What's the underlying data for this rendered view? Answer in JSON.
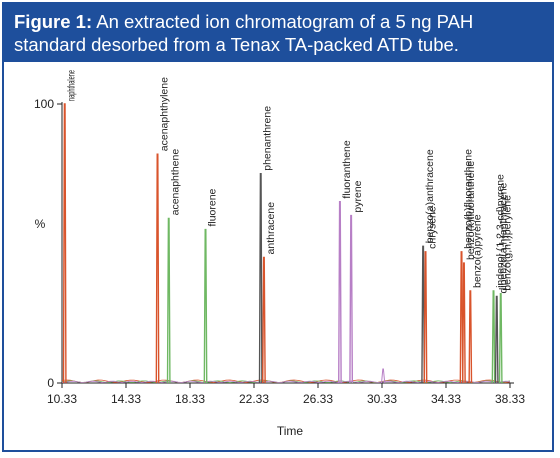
{
  "figure": {
    "label": "Figure 1:",
    "caption": "An extracted ion chromatogram of a 5 ng PAH standard desorbed from a Tenax TA-packed ATD tube."
  },
  "chart_data": {
    "type": "line",
    "xlabel": "Time",
    "ylabel": "%",
    "xlim": [
      10.33,
      38.33
    ],
    "ylim": [
      0,
      100
    ],
    "x_ticks": [
      "10.33",
      "14.33",
      "18.33",
      "22.33",
      "26.33",
      "30.33",
      "34.33",
      "38.33"
    ],
    "y_ticks": [
      "0",
      "100"
    ],
    "peaks": [
      {
        "label": "naphthalene",
        "time": 10.5,
        "height": 100,
        "color": "#d9542c"
      },
      {
        "label": "acenaphthylene",
        "time": 16.3,
        "height": 82,
        "color": "#d9542c"
      },
      {
        "label": "acenaphthene",
        "time": 17.0,
        "height": 59,
        "color": "#6fb863"
      },
      {
        "label": "fluorene",
        "time": 19.3,
        "height": 55,
        "color": "#6fb863"
      },
      {
        "label": "phenanthrene",
        "time": 22.75,
        "height": 75,
        "color": "#555555"
      },
      {
        "label": "anthracene",
        "time": 22.95,
        "height": 45,
        "color": "#d9542c"
      },
      {
        "label": "fluoranthene",
        "time": 27.7,
        "height": 65,
        "color": "#b77fc6"
      },
      {
        "label": "pyrene",
        "time": 28.4,
        "height": 60,
        "color": "#b77fc6"
      },
      {
        "label": "benzo(a)anthracene",
        "time": 32.9,
        "height": 49,
        "color": "#555555"
      },
      {
        "label": "chrysene",
        "time": 33.05,
        "height": 47,
        "color": "#d9542c"
      },
      {
        "label": "benzo(b)fluoranthene",
        "time": 35.3,
        "height": 47,
        "color": "#d9542c"
      },
      {
        "label": "benzo(k)fluoranthene",
        "time": 35.45,
        "height": 43,
        "color": "#d9542c"
      },
      {
        "label": "benzo(a)pyrene",
        "time": 35.85,
        "height": 33,
        "color": "#d9542c"
      },
      {
        "label": "indenol (1,2,3-cd)pyrene",
        "time": 37.3,
        "height": 33,
        "color": "#6fb863"
      },
      {
        "label": "dibenzo(a,h)anthracene",
        "time": 37.5,
        "height": 31,
        "color": "#555555"
      },
      {
        "label": "benzo(g,h,i)perylene",
        "time": 37.75,
        "height": 32,
        "color": "#6fb863"
      }
    ],
    "minor_peaks": [
      {
        "time": 30.4,
        "height": 5,
        "color": "#b77fc6"
      }
    ]
  }
}
